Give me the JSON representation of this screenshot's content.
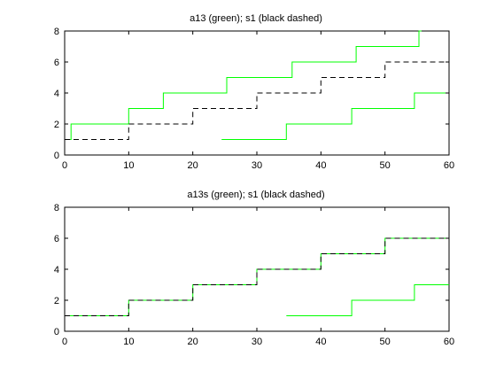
{
  "chart_data": [
    {
      "type": "line",
      "title": "a13 (green); s1 (black dashed)",
      "xlim": [
        0,
        60
      ],
      "ylim": [
        0,
        8
      ],
      "xticks": [
        0,
        10,
        20,
        30,
        40,
        50,
        60
      ],
      "yticks": [
        0,
        2,
        4,
        6,
        8
      ],
      "grid": false,
      "series": [
        {
          "color": "#00ff00",
          "style": "solid",
          "step": "post",
          "x": [
            0,
            1,
            10,
            15.4,
            25.3,
            35.5,
            45.5,
            55.3,
            55.7
          ],
          "y": [
            1,
            2,
            3,
            4,
            5,
            6,
            7,
            8,
            8
          ]
        },
        {
          "color": "#00ff00",
          "style": "solid",
          "step": "post",
          "x": [
            24.5,
            34.6,
            44.8,
            54.6,
            60
          ],
          "y": [
            1,
            2,
            3,
            4,
            4
          ]
        },
        {
          "color": "#000000",
          "style": "dashed",
          "step": "post",
          "x": [
            0,
            10,
            20,
            30,
            40,
            50,
            60
          ],
          "y": [
            1,
            2,
            3,
            4,
            5,
            6,
            6
          ]
        }
      ]
    },
    {
      "type": "line",
      "title": "a13s (green); s1 (black dashed)",
      "xlim": [
        0,
        60
      ],
      "ylim": [
        0,
        8
      ],
      "xticks": [
        0,
        10,
        20,
        30,
        40,
        50,
        60
      ],
      "yticks": [
        0,
        2,
        4,
        6,
        8
      ],
      "grid": false,
      "series": [
        {
          "color": "#00ff00",
          "style": "solid",
          "step": "post",
          "x": [
            0,
            10,
            20,
            30,
            40,
            50,
            60
          ],
          "y": [
            1,
            2,
            3,
            4,
            5,
            6,
            6
          ]
        },
        {
          "color": "#00ff00",
          "style": "solid",
          "step": "post",
          "x": [
            34.6,
            44.8,
            54.6,
            60
          ],
          "y": [
            1,
            2,
            3,
            3
          ]
        },
        {
          "color": "#000000",
          "style": "dashed",
          "step": "post",
          "x": [
            0,
            10,
            20,
            30,
            40,
            50,
            60
          ],
          "y": [
            1,
            2,
            3,
            4,
            5,
            6,
            6
          ]
        }
      ]
    }
  ]
}
